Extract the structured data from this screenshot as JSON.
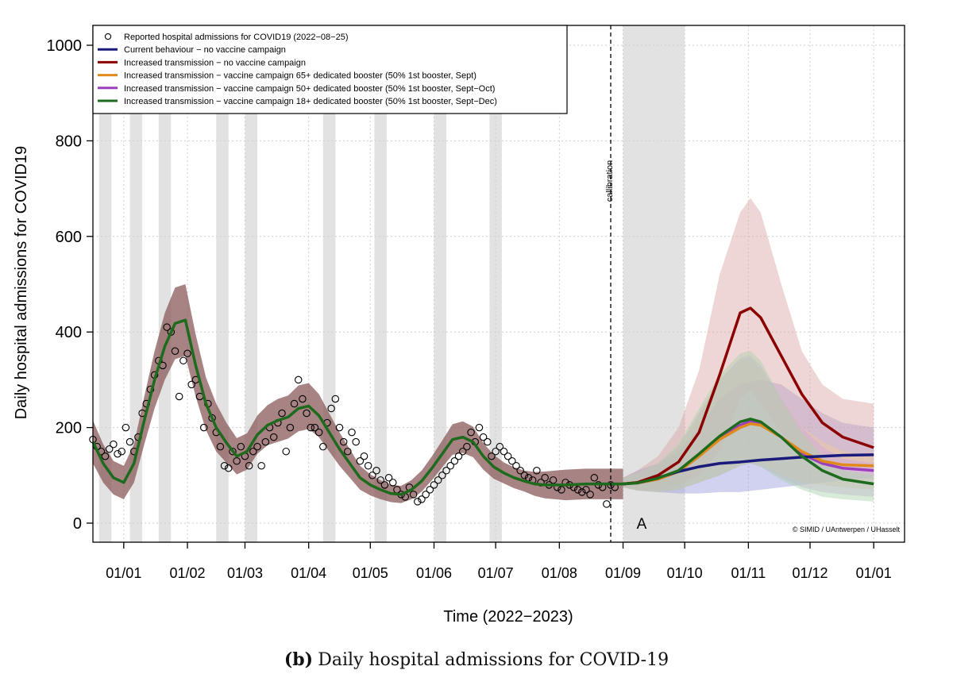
{
  "chart_data": {
    "type": "line",
    "ylabel": "Daily hospital admissions for COVID19",
    "xlabel": "Time (2022−2023)",
    "ylim": [
      0,
      1000
    ],
    "xlim_days": [
      -15,
      380
    ],
    "yticks": [
      0,
      200,
      400,
      600,
      800,
      1000
    ],
    "xtick_labels": [
      "01/01",
      "01/02",
      "01/03",
      "01/04",
      "01/05",
      "01/06",
      "01/07",
      "01/08",
      "01/09",
      "01/10",
      "01/11",
      "01/12",
      "01/01"
    ],
    "xtick_days": [
      0,
      31,
      59,
      90,
      120,
      151,
      181,
      212,
      243,
      273,
      304,
      334,
      365
    ],
    "calibration_day": 237,
    "calibration_label": "callibration",
    "scenario_window_days": [
      243,
      273
    ],
    "scenario_label": "A",
    "copyright": "© SIMID / UAntwerpen / UHasselt",
    "holiday_periods_days": [
      [
        -12,
        -6
      ],
      [
        3,
        9
      ],
      [
        17,
        23
      ],
      [
        45,
        51
      ],
      [
        59,
        65
      ],
      [
        97,
        103
      ],
      [
        122,
        128
      ],
      [
        151,
        157
      ],
      [
        178,
        184
      ],
      [
        243,
        273
      ]
    ],
    "legend": [
      {
        "label": "Reported hospital admissions for COVID19 (2022−08−25)",
        "kind": "point",
        "color": "#000000"
      },
      {
        "label": "Current behaviour − no vaccine campaign",
        "kind": "line",
        "color": "#1a1a7a"
      },
      {
        "label": "Increased transmission − no vaccine campaign",
        "kind": "line",
        "color": "#8b0000"
      },
      {
        "label": "Increased transmission − vaccine campaign 65+ dedicated booster (50% 1st booster, Sept)",
        "kind": "line",
        "color": "#e08a1e"
      },
      {
        "label": "Increased transmission − vaccine campaign 50+ dedicated booster (50% 1st booster, Sept−Oct)",
        "kind": "line",
        "color": "#9b3fbf"
      },
      {
        "label": "Increased transmission − vaccine campaign 18+ dedicated booster (50% 1st booster, Sept−Dec)",
        "kind": "line",
        "color": "#1e6b1e"
      }
    ],
    "fit_series": {
      "name": "model fit (calibration)",
      "color": "#1e6b1e",
      "x": [
        -15,
        -10,
        -5,
        0,
        5,
        10,
        15,
        20,
        25,
        30,
        35,
        40,
        45,
        50,
        55,
        60,
        65,
        70,
        75,
        80,
        85,
        90,
        95,
        100,
        105,
        110,
        115,
        120,
        125,
        130,
        135,
        140,
        145,
        150,
        155,
        160,
        165,
        170,
        175,
        180,
        185,
        190,
        195,
        200,
        205,
        210,
        215,
        220,
        225,
        230,
        235,
        240,
        243
      ],
      "y": [
        170,
        125,
        95,
        85,
        125,
        215,
        300,
        370,
        418,
        425,
        330,
        250,
        200,
        168,
        140,
        150,
        185,
        205,
        215,
        222,
        240,
        245,
        225,
        190,
        155,
        125,
        95,
        80,
        70,
        62,
        60,
        70,
        88,
        115,
        145,
        175,
        180,
        170,
        140,
        118,
        105,
        95,
        88,
        82,
        80,
        80,
        80,
        81,
        82,
        82,
        82,
        82,
        82
      ],
      "band_width": [
        45,
        40,
        35,
        35,
        40,
        50,
        60,
        70,
        75,
        75,
        65,
        55,
        50,
        42,
        38,
        38,
        40,
        42,
        45,
        45,
        48,
        48,
        45,
        40,
        35,
        30,
        25,
        22,
        20,
        18,
        18,
        20,
        22,
        25,
        28,
        32,
        33,
        32,
        28,
        25,
        22,
        22,
        22,
        25,
        28,
        30,
        32,
        32,
        32,
        32,
        32,
        32,
        32
      ]
    },
    "series": [
      {
        "name": "Current behaviour − no vaccine campaign",
        "color": "#1a1a7a",
        "x": [
          243,
          250,
          260,
          270,
          280,
          290,
          300,
          310,
          320,
          330,
          340,
          350,
          365
        ],
        "y": [
          82,
          85,
          95,
          108,
          118,
          125,
          128,
          132,
          135,
          138,
          140,
          142,
          143
        ],
        "band": [
          [
            75,
            95
          ],
          [
            70,
            110
          ],
          [
            65,
            125
          ],
          [
            62,
            150
          ],
          [
            62,
            200
          ],
          [
            65,
            260
          ],
          [
            65,
            290
          ],
          [
            70,
            300
          ],
          [
            75,
            290
          ],
          [
            80,
            260
          ],
          [
            85,
            230
          ],
          [
            90,
            210
          ],
          [
            95,
            200
          ]
        ]
      },
      {
        "name": "Increased transmission − no vaccine campaign",
        "color": "#8b0000",
        "x": [
          243,
          250,
          260,
          270,
          280,
          290,
          300,
          305,
          310,
          320,
          330,
          340,
          350,
          365
        ],
        "y": [
          82,
          85,
          100,
          128,
          190,
          310,
          440,
          450,
          430,
          350,
          270,
          210,
          180,
          158
        ],
        "band": [
          [
            75,
            95
          ],
          [
            70,
            110
          ],
          [
            70,
            140
          ],
          [
            80,
            200
          ],
          [
            100,
            320
          ],
          [
            150,
            520
          ],
          [
            260,
            650
          ],
          [
            280,
            680
          ],
          [
            250,
            650
          ],
          [
            190,
            500
          ],
          [
            150,
            360
          ],
          [
            130,
            290
          ],
          [
            115,
            260
          ],
          [
            110,
            250
          ]
        ]
      },
      {
        "name": "Increased transmission − vaccine campaign 65+ dedicated booster (50% 1st booster, Sept)",
        "color": "#e08a1e",
        "x": [
          243,
          250,
          260,
          270,
          280,
          290,
          300,
          305,
          310,
          320,
          330,
          340,
          350,
          365
        ],
        "y": [
          82,
          84,
          92,
          108,
          140,
          175,
          200,
          208,
          205,
          180,
          150,
          130,
          122,
          120
        ],
        "band": [
          [
            75,
            95
          ],
          [
            68,
            105
          ],
          [
            65,
            125
          ],
          [
            70,
            160
          ],
          [
            85,
            230
          ],
          [
            100,
            300
          ],
          [
            120,
            340
          ],
          [
            125,
            345
          ],
          [
            120,
            320
          ],
          [
            100,
            260
          ],
          [
            85,
            200
          ],
          [
            80,
            170
          ],
          [
            75,
            150
          ],
          [
            70,
            140
          ]
        ]
      },
      {
        "name": "Increased transmission − vaccine campaign 50+ dedicated booster (50% 1st booster, Sept−Oct)",
        "color": "#9b3fbf",
        "x": [
          243,
          250,
          260,
          270,
          280,
          290,
          300,
          305,
          310,
          320,
          330,
          340,
          350,
          365
        ],
        "y": [
          82,
          84,
          92,
          108,
          140,
          178,
          205,
          213,
          208,
          180,
          145,
          125,
          115,
          110
        ],
        "band": [
          [
            75,
            95
          ],
          [
            68,
            105
          ],
          [
            65,
            125
          ],
          [
            70,
            160
          ],
          [
            85,
            230
          ],
          [
            100,
            300
          ],
          [
            120,
            345
          ],
          [
            125,
            350
          ],
          [
            118,
            330
          ],
          [
            95,
            260
          ],
          [
            75,
            200
          ],
          [
            65,
            160
          ],
          [
            60,
            135
          ],
          [
            55,
            125
          ]
        ]
      },
      {
        "name": "Increased transmission − vaccine campaign 18+ dedicated booster (50% 1st booster, Sept−Dec)",
        "color": "#1e6b1e",
        "x": [
          243,
          250,
          260,
          270,
          280,
          290,
          300,
          305,
          310,
          320,
          330,
          340,
          350,
          365
        ],
        "y": [
          82,
          84,
          94,
          110,
          145,
          182,
          212,
          218,
          212,
          180,
          140,
          110,
          92,
          82
        ],
        "band": [
          [
            75,
            95
          ],
          [
            68,
            105
          ],
          [
            65,
            125
          ],
          [
            70,
            165
          ],
          [
            85,
            240
          ],
          [
            100,
            310
          ],
          [
            120,
            355
          ],
          [
            125,
            360
          ],
          [
            118,
            340
          ],
          [
            90,
            260
          ],
          [
            70,
            190
          ],
          [
            55,
            140
          ],
          [
            50,
            110
          ],
          [
            45,
            100
          ]
        ]
      }
    ],
    "observations": {
      "x": [
        -15,
        -13,
        -11,
        -9,
        -7,
        -5,
        -3,
        -1,
        1,
        3,
        5,
        7,
        9,
        11,
        13,
        15,
        17,
        19,
        21,
        23,
        25,
        27,
        29,
        31,
        33,
        35,
        37,
        39,
        41,
        43,
        45,
        47,
        49,
        51,
        53,
        55,
        57,
        59,
        61,
        63,
        65,
        67,
        69,
        71,
        73,
        75,
        77,
        79,
        81,
        83,
        85,
        87,
        89,
        91,
        93,
        95,
        97,
        99,
        101,
        103,
        105,
        107,
        109,
        111,
        113,
        115,
        117,
        119,
        121,
        123,
        125,
        127,
        129,
        131,
        133,
        135,
        137,
        139,
        141,
        143,
        145,
        147,
        149,
        151,
        153,
        155,
        157,
        159,
        161,
        163,
        165,
        167,
        169,
        171,
        173,
        175,
        177,
        179,
        181,
        183,
        185,
        187,
        189,
        191,
        193,
        195,
        197,
        199,
        201,
        203,
        205,
        207,
        209,
        211,
        213,
        215,
        217,
        219,
        221,
        223,
        225,
        227,
        229,
        231,
        233,
        235,
        237,
        239
      ],
      "y": [
        175,
        160,
        150,
        140,
        155,
        165,
        145,
        150,
        200,
        170,
        150,
        180,
        230,
        250,
        280,
        310,
        340,
        330,
        410,
        400,
        360,
        265,
        340,
        355,
        290,
        300,
        265,
        200,
        250,
        220,
        190,
        160,
        120,
        115,
        150,
        130,
        160,
        140,
        120,
        150,
        160,
        120,
        170,
        200,
        180,
        210,
        230,
        150,
        200,
        250,
        300,
        260,
        230,
        200,
        200,
        190,
        160,
        210,
        240,
        260,
        200,
        170,
        150,
        190,
        170,
        130,
        140,
        120,
        100,
        110,
        90,
        80,
        95,
        85,
        70,
        60,
        55,
        75,
        60,
        45,
        50,
        60,
        70,
        80,
        90,
        100,
        110,
        120,
        130,
        140,
        150,
        160,
        190,
        170,
        200,
        180,
        170,
        140,
        150,
        160,
        150,
        140,
        130,
        120,
        110,
        100,
        95,
        90,
        110,
        85,
        95,
        80,
        90,
        75,
        70,
        85,
        80,
        75,
        70,
        65,
        70,
        60,
        95,
        80,
        75,
        40,
        80,
        75
      ]
    }
  },
  "caption": {
    "tag": "(b)",
    "text": "Daily hospital admissions for COVID-19"
  }
}
